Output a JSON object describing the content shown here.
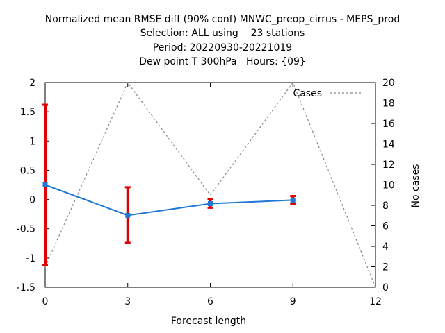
{
  "chart_data": {
    "type": "line",
    "title_lines": [
      "Normalized mean RMSE diff (90% conf) MNWC_preop_cirrus - MEPS_prod",
      "Selection: ALL using    23 stations",
      "Period: 20220930-20221019",
      "Dew point T 300hPa   Hours: {09}"
    ],
    "xlabel": "Forecast length",
    "ylabel_right": "No cases",
    "xlim": [
      0,
      12
    ],
    "ylim": [
      -1.5,
      2
    ],
    "y2lim": [
      0,
      20
    ],
    "x_ticks": [
      0,
      3,
      6,
      9,
      12
    ],
    "y_ticks": [
      -1.5,
      -1,
      -0.5,
      0,
      0.5,
      1,
      1.5,
      2
    ],
    "y_tick_labels": [
      "-1.5",
      "-1",
      "-0.5",
      "0",
      "0.5",
      "1",
      "1.5",
      "2"
    ],
    "y2_ticks": [
      0,
      2,
      4,
      6,
      8,
      10,
      12,
      14,
      16,
      18,
      20
    ],
    "legend_position": "top-right",
    "series": [
      {
        "x": [
          0,
          3,
          6,
          9
        ],
        "y": [
          0.25,
          -0.27,
          -0.07,
          -0.01
        ],
        "err_low": [
          -1.12,
          -0.74,
          -0.14,
          -0.07
        ],
        "err_high": [
          1.62,
          0.21,
          0.01,
          0.06
        ],
        "color": "#1f77d4",
        "err_color": "#e00000"
      },
      {
        "name": "Cases",
        "axis": "y2",
        "x": [
          0,
          3,
          6,
          9,
          12
        ],
        "y": [
          2,
          20,
          9,
          20,
          0
        ],
        "color": "#888888",
        "style": "dashed"
      }
    ]
  }
}
